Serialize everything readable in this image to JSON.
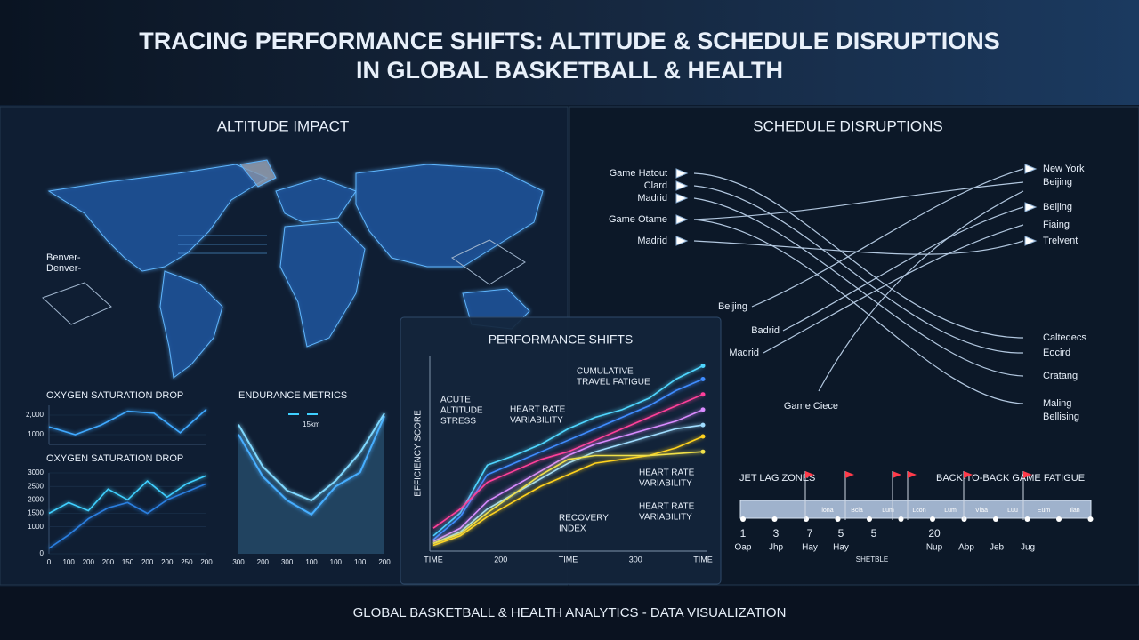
{
  "header": {
    "title": [
      "TRACING PERFORMANCE SHIFTS: ALTITUDE & SCHEDULE DISRUPTIONS",
      "IN GLOBAL BASKETBALL & HEALTH"
    ]
  },
  "altitude": {
    "title": "ALTITUDE IMPACT",
    "labels": [
      "Benver-",
      "Denver-"
    ],
    "oxygen_top": {
      "type": "line",
      "title": "OXYGEN SATURATION DROP",
      "ylim": [
        500,
        2500
      ],
      "yticks": [
        {
          "value": 2000,
          "label": "2,000"
        },
        1000
      ],
      "series": [
        {
          "color": "#3fa9ff",
          "values": [
            1400,
            1000,
            1500,
            2200,
            2100,
            1100,
            2300
          ]
        }
      ]
    },
    "oxygen_bottom": {
      "type": "line",
      "title": "OXYGEN SATURATION DROP",
      "ylim": [
        0,
        3000
      ],
      "yticks": [
        0,
        1000,
        1500,
        2000,
        2500,
        3000
      ],
      "categories": [
        "0",
        "100",
        "200",
        "200",
        "150",
        "200",
        "200",
        "250",
        "200"
      ],
      "series": [
        {
          "color": "#3fd0ff",
          "values": [
            1500,
            1900,
            1600,
            2400,
            2000,
            2700,
            2100,
            2600,
            2900
          ]
        },
        {
          "color": "#2a7fe0",
          "values": [
            200,
            700,
            1300,
            1700,
            1900,
            1500,
            2000,
            2300,
            2600
          ]
        }
      ]
    },
    "endurance": {
      "type": "area",
      "title": "ENDURANCE METRICS",
      "legend": "15km",
      "ylim": [
        0,
        100
      ],
      "categories": [
        "300",
        "200",
        "300",
        "100",
        "100",
        "100",
        "200"
      ],
      "series": [
        {
          "color": "#3fa9ff",
          "values": [
            85,
            55,
            38,
            28,
            48,
            58,
            98
          ]
        },
        {
          "color": "#7fd8ff",
          "values": [
            92,
            62,
            45,
            38,
            52,
            72,
            100
          ]
        }
      ]
    }
  },
  "performance": {
    "type": "line",
    "title": "PERFORMANCE SHIFTS",
    "y_label": "EFFICIENCY SCORE",
    "ylim": [
      0,
      100
    ],
    "categories": [
      "TIME",
      "200",
      "TIME",
      "300",
      "TIME"
    ],
    "annotations": [
      [
        "ACUTE",
        "ALTITUDE",
        "STRESS"
      ],
      [
        "HEART RATE",
        "VARIABILITY"
      ],
      [
        "CUMULATIVE",
        "TRAVEL FATIGUE"
      ],
      [
        "HEART RATE",
        "VARIABILITY"
      ],
      [
        "RECOVERY",
        "INDEX"
      ],
      [
        "HEART RATE",
        "VARIABILITY"
      ]
    ],
    "series": [
      {
        "color": "#4fd6ff",
        "values": [
          8,
          20,
          45,
          50,
          56,
          64,
          70,
          74,
          80,
          90,
          97
        ]
      },
      {
        "color": "#3f8cff",
        "values": [
          6,
          18,
          40,
          46,
          52,
          58,
          64,
          70,
          76,
          84,
          90
        ]
      },
      {
        "color": "#ff3f9a",
        "values": [
          12,
          22,
          36,
          42,
          48,
          52,
          58,
          64,
          70,
          76,
          82
        ]
      },
      {
        "color": "#d98bff",
        "values": [
          5,
          12,
          26,
          34,
          42,
          50,
          56,
          60,
          64,
          68,
          74
        ]
      },
      {
        "color": "#9fdcff",
        "values": [
          4,
          10,
          22,
          30,
          38,
          46,
          52,
          56,
          60,
          64,
          66
        ]
      },
      {
        "color": "#ffd21f",
        "values": [
          3,
          8,
          18,
          26,
          34,
          40,
          46,
          48,
          50,
          54,
          60
        ]
      },
      {
        "color": "#f0e04a",
        "values": [
          4,
          9,
          20,
          30,
          40,
          48,
          50,
          50,
          50,
          51,
          52
        ]
      }
    ]
  },
  "schedule": {
    "title": "SCHEDULE DISRUPTIONS",
    "origins": [
      "Game Hatout",
      "Clard",
      "Madrid",
      "Game Otame",
      "Madrid"
    ],
    "destinations": [
      "New York",
      "Beijing",
      "Beijing",
      "Fiaing",
      "Trelvent"
    ],
    "returns": [
      "Beijing",
      "Badrid",
      "Madrid",
      "Game Ciece"
    ],
    "arrivals": [
      "Caltedecs",
      "Eocird",
      "Cratang",
      "Maling",
      "Bellising"
    ],
    "timeline": {
      "left_label": "JET LAG ZONES",
      "right_label": "BACK-TO-BACK GAME FATIGUE",
      "segments": [
        "Tiona",
        "Bcia",
        "Lum",
        "Lcon",
        "Lum",
        "Vlaa",
        "Luu",
        "Eum",
        "Ilan"
      ],
      "numbers": [
        "1",
        "3",
        "7",
        "5",
        "5",
        "20"
      ],
      "months": [
        "Oap",
        "Jhp",
        "Hay",
        "Hay",
        "Nup",
        "Abp",
        "Jeb",
        "Jug"
      ],
      "note": "SHETBLE"
    }
  },
  "footer": {
    "text": "GLOBAL BASKETBALL & HEALTH ANALYTICS - DATA VISUALIZATION"
  }
}
